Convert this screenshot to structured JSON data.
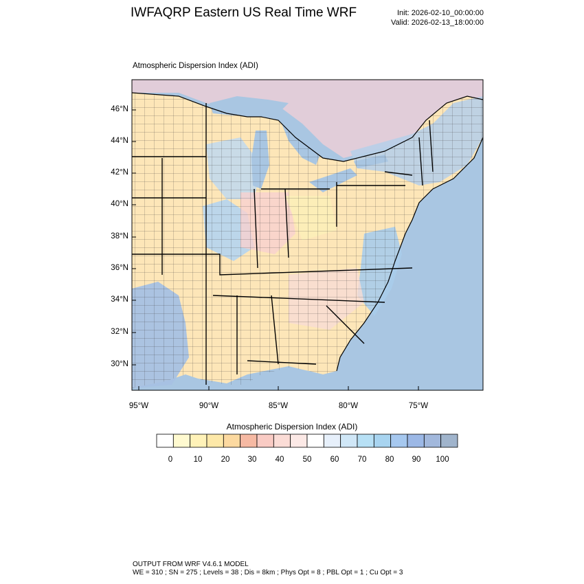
{
  "header": {
    "title": "IWFAQRP Eastern US Real Time WRF",
    "init": "Init: 2026-02-10_00:00:00",
    "valid": "Valid: 2026-02-13_18:00:00"
  },
  "map": {
    "plot_title": "Atmospheric Dispersion Index   (ADI)",
    "lat_ticks": [
      "46°N",
      "44°N",
      "42°N",
      "40°N",
      "38°N",
      "36°N",
      "34°N",
      "32°N",
      "30°N"
    ],
    "lon_ticks": [
      "95°W",
      "90°W",
      "85°W",
      "80°W",
      "75°W"
    ],
    "colors": {
      "ocean": "#a9c6e2",
      "land_low": "#fde6b8",
      "land_high": "#b4cce6",
      "border": "#000000"
    }
  },
  "colorbar": {
    "title": "Atmospheric Dispersion Index  (ADI)",
    "labels": [
      "0",
      "10",
      "20",
      "30",
      "40",
      "50",
      "60",
      "70",
      "80",
      "90",
      "100"
    ],
    "colors": [
      "#ffffff",
      "#fffad0",
      "#fff2b8",
      "#fde8a8",
      "#fcd9a0",
      "#f6b9a3",
      "#f9cbc4",
      "#fbdcd6",
      "#fce9e6",
      "#ffffff",
      "#e7f0fb",
      "#d0e7f7",
      "#b7e0f5",
      "#a8d4f0",
      "#a6c8ef",
      "#9cb8e6",
      "#a2b8dc",
      "#a0b4cc"
    ]
  },
  "footer": {
    "line1": "OUTPUT FROM WRF V4.6.1 MODEL",
    "line2": "WE = 310 ; SN = 275 ; Levels = 38 ; Dis = 8km ; Phys Opt = 8 ; PBL Opt = 1 ; Cu Opt = 3"
  }
}
